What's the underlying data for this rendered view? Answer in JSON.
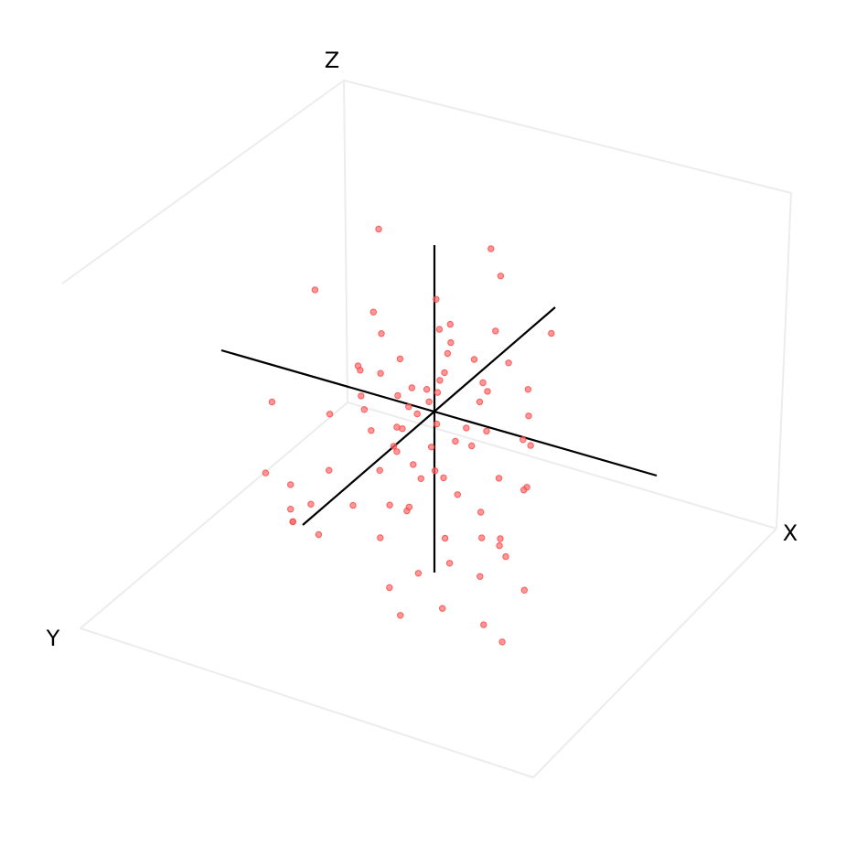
{
  "chart_data": {
    "type": "scatter",
    "title": "",
    "axis_labels": {
      "x": "X",
      "y": "Y",
      "z": "Z"
    },
    "grid": false,
    "point_color": "#ff4d4d",
    "axis_line_color": "#000000",
    "frame_color": "#ececec",
    "axis_ranges": {
      "x": [
        -2,
        2
      ],
      "y": [
        -2,
        2
      ],
      "z": [
        -2,
        2
      ]
    },
    "points": [
      {
        "x": -1.2,
        "y": -0.3,
        "z": 1.9
      },
      {
        "x": 0.4,
        "y": -1.1,
        "z": 1.7
      },
      {
        "x": 1.1,
        "y": -0.2,
        "z": 1.8
      },
      {
        "x": -1.5,
        "y": 1.2,
        "z": 1.6
      },
      {
        "x": -0.6,
        "y": 0.9,
        "z": 1.4
      },
      {
        "x": -0.2,
        "y": -0.4,
        "z": 1.2
      },
      {
        "x": 1.8,
        "y": -0.6,
        "z": 1.1
      },
      {
        "x": 0.3,
        "y": 0.0,
        "z": 0.9
      },
      {
        "x": 0.3,
        "y": 0.1,
        "z": 0.8
      },
      {
        "x": -0.8,
        "y": 0.3,
        "z": 0.9
      },
      {
        "x": 0.0,
        "y": -0.5,
        "z": 0.9
      },
      {
        "x": -0.2,
        "y": -0.5,
        "z": 0.8
      },
      {
        "x": 0.6,
        "y": -0.9,
        "z": 0.8
      },
      {
        "x": -0.4,
        "y": 0.4,
        "z": 0.7
      },
      {
        "x": 0.3,
        "y": 0.2,
        "z": 0.6
      },
      {
        "x": -0.9,
        "y": 0.8,
        "z": 0.6
      },
      {
        "x": -1.0,
        "y": 0.7,
        "z": 0.6
      },
      {
        "x": 0.5,
        "y": -0.4,
        "z": 0.6
      },
      {
        "x": 0.9,
        "y": -0.8,
        "z": 0.5
      },
      {
        "x": -0.7,
        "y": 0.5,
        "z": 0.5
      },
      {
        "x": 0.8,
        "y": -0.3,
        "z": 0.3
      },
      {
        "x": 0.1,
        "y": 0.0,
        "z": 0.4
      },
      {
        "x": -0.3,
        "y": 0.2,
        "z": 0.3
      },
      {
        "x": 0.6,
        "y": -0.5,
        "z": 0.3
      },
      {
        "x": -0.2,
        "y": -0.1,
        "z": 0.2
      },
      {
        "x": 0.0,
        "y": -0.1,
        "z": 0.2
      },
      {
        "x": -1.0,
        "y": 0.6,
        "z": 0.2
      },
      {
        "x": -0.5,
        "y": 0.3,
        "z": 0.2
      },
      {
        "x": -2.0,
        "y": 1.7,
        "z": 0.3
      },
      {
        "x": -0.1,
        "y": 0.0,
        "z": 0.1
      },
      {
        "x": 1.2,
        "y": -0.9,
        "z": 0.2
      },
      {
        "x": 1.5,
        "y": -0.4,
        "z": 0.1
      },
      {
        "x": 0.6,
        "y": -0.4,
        "z": 0.1
      },
      {
        "x": 1.8,
        "y": 0.3,
        "z": 0.1
      },
      {
        "x": 2.0,
        "y": 0.4,
        "z": 0.1
      },
      {
        "x": 0.7,
        "y": 0.2,
        "z": 0.0
      },
      {
        "x": -1.4,
        "y": 0.9,
        "z": 0.0
      },
      {
        "x": -1.0,
        "y": 0.5,
        "z": 0.0
      },
      {
        "x": -0.3,
        "y": 0.3,
        "z": 0.1
      },
      {
        "x": -0.3,
        "y": 0.5,
        "z": -0.1
      },
      {
        "x": -0.4,
        "y": 0.5,
        "z": -0.1
      },
      {
        "x": -0.7,
        "y": 0.8,
        "z": -0.1
      },
      {
        "x": -0.2,
        "y": 0.2,
        "z": 0.0
      },
      {
        "x": 0.1,
        "y": 0.1,
        "z": -0.1
      },
      {
        "x": 0.8,
        "y": 0.2,
        "z": -0.2
      },
      {
        "x": 0.9,
        "y": -0.1,
        "z": -0.1
      },
      {
        "x": 0.5,
        "y": 0.2,
        "z": -0.2
      },
      {
        "x": -2.0,
        "y": 1.9,
        "z": -0.5
      },
      {
        "x": -1.6,
        "y": 1.8,
        "z": -0.6
      },
      {
        "x": -0.4,
        "y": 0.6,
        "z": -0.3
      },
      {
        "x": -0.4,
        "y": 0.5,
        "z": -0.4
      },
      {
        "x": 0.0,
        "y": 0.1,
        "z": -0.4
      },
      {
        "x": 1.3,
        "y": 0.2,
        "z": -0.5
      },
      {
        "x": -1.3,
        "y": 1.1,
        "z": -0.6
      },
      {
        "x": -0.6,
        "y": 0.7,
        "z": -0.6
      },
      {
        "x": 0.1,
        "y": 0.6,
        "z": -0.6
      },
      {
        "x": 0.4,
        "y": 0.4,
        "z": -0.6
      },
      {
        "x": -0.1,
        "y": 0.5,
        "z": -0.5
      },
      {
        "x": 0.3,
        "y": 0.5,
        "z": -0.5
      },
      {
        "x": 1.2,
        "y": 0.6,
        "z": -0.8
      },
      {
        "x": 1.7,
        "y": 0.0,
        "z": -0.6
      },
      {
        "x": 1.7,
        "y": 0.1,
        "z": -0.6
      },
      {
        "x": 0.6,
        "y": 0.3,
        "z": -0.8
      },
      {
        "x": -1.5,
        "y": 1.9,
        "z": -1.0
      },
      {
        "x": -1.4,
        "y": 1.5,
        "z": -0.9
      },
      {
        "x": -0.8,
        "y": 1.2,
        "z": -0.9
      },
      {
        "x": -0.3,
        "y": 0.9,
        "z": -0.9
      },
      {
        "x": 1.5,
        "y": 0.5,
        "z": -1.1
      },
      {
        "x": -1.6,
        "y": 1.8,
        "z": -0.9
      },
      {
        "x": -1.5,
        "y": 1.9,
        "z": -1.0
      },
      {
        "x": -1.2,
        "y": 1.6,
        "z": -1.2
      },
      {
        "x": -0.3,
        "y": 1.2,
        "z": -1.2
      },
      {
        "x": -0.1,
        "y": 0.7,
        "z": -1.0
      },
      {
        "x": 0.0,
        "y": 0.8,
        "z": -0.9
      },
      {
        "x": 0.6,
        "y": 0.7,
        "z": -1.2
      },
      {
        "x": 1.1,
        "y": 0.4,
        "z": -1.2
      },
      {
        "x": 1.6,
        "y": 0.7,
        "z": -1.1
      },
      {
        "x": 1.6,
        "y": 0.5,
        "z": -1.3
      },
      {
        "x": 0.4,
        "y": 1.2,
        "z": -1.5
      },
      {
        "x": 0.8,
        "y": 0.9,
        "z": -1.4
      },
      {
        "x": 1.3,
        "y": 0.8,
        "z": -1.5
      },
      {
        "x": 0.1,
        "y": 1.6,
        "z": -1.6
      },
      {
        "x": 0.9,
        "y": 1.3,
        "z": -1.8
      },
      {
        "x": 2.0,
        "y": 0.6,
        "z": -1.6
      },
      {
        "x": 0.3,
        "y": 1.6,
        "z": -1.9
      },
      {
        "x": 1.6,
        "y": 1.2,
        "z": -1.9
      },
      {
        "x": 2.0,
        "y": 1.3,
        "z": -2.0
      }
    ]
  }
}
